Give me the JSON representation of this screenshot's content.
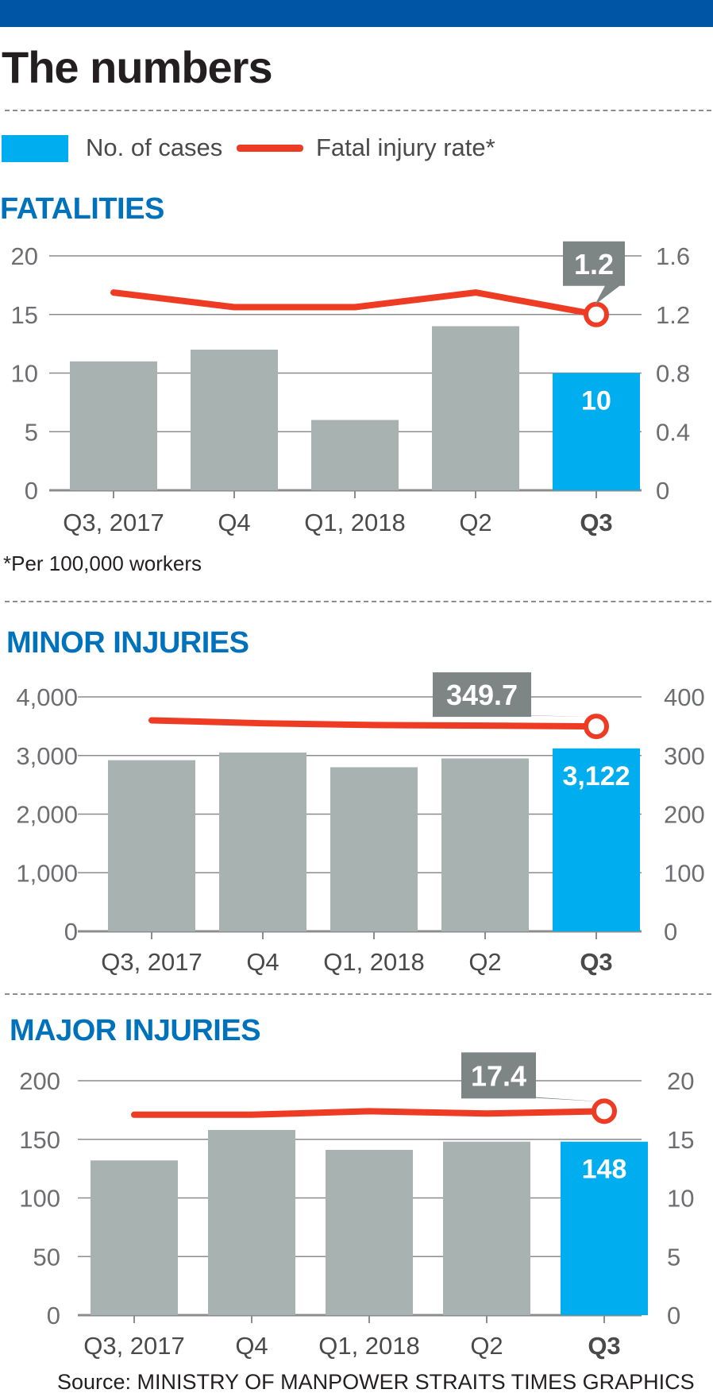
{
  "title": "The numbers",
  "legend": {
    "cases_label": "No. of cases",
    "rate_label": "Fatal injury rate*"
  },
  "colors": {
    "bar": "#a7b2b1",
    "highlight": "#00aeef",
    "line": "#ee3b24",
    "grid": "#8c8c8c",
    "callout": "#7d8685",
    "section": "#0072bc"
  },
  "footnote": "*Per 100,000 workers",
  "source": "Source: MINISTRY OF MANPOWER   STRAITS TIMES GRAPHICS",
  "chart_data": [
    {
      "type": "bar",
      "title": "FATALITIES",
      "categories": [
        "Q3, 2017",
        "Q4",
        "Q1, 2018",
        "Q2",
        "Q3"
      ],
      "series": [
        {
          "name": "No. of cases",
          "axis": "left",
          "values": [
            11,
            12,
            6,
            14,
            10
          ]
        },
        {
          "name": "Fatal injury rate*",
          "axis": "right",
          "type": "line",
          "values": [
            1.35,
            1.25,
            1.25,
            1.35,
            1.2
          ]
        }
      ],
      "ylim": [
        0,
        20
      ],
      "yticks": [
        0,
        5,
        10,
        15,
        20
      ],
      "ytick_labels": [
        "0",
        "5",
        "10",
        "15",
        "20"
      ],
      "y2lim": [
        0,
        1.6
      ],
      "y2ticks": [
        0,
        0.4,
        0.8,
        1.2,
        1.6
      ],
      "y2tick_labels": [
        "0",
        "0.4",
        "0.8",
        "1.2",
        "1.6"
      ],
      "bar_label": "10",
      "callout_label": "1.2"
    },
    {
      "type": "bar",
      "title": "MINOR INJURIES",
      "categories": [
        "Q3, 2017",
        "Q4",
        "Q1, 2018",
        "Q2",
        "Q3"
      ],
      "series": [
        {
          "name": "No. of cases",
          "axis": "left",
          "values": [
            2920,
            3050,
            2800,
            2950,
            3122
          ]
        },
        {
          "name": "Fatal injury rate*",
          "axis": "right",
          "type": "line",
          "values": [
            360,
            355,
            352,
            351,
            349.7
          ]
        }
      ],
      "ylim": [
        0,
        4000
      ],
      "yticks": [
        0,
        1000,
        2000,
        3000,
        4000
      ],
      "ytick_labels": [
        "0",
        "1,000",
        "2,000",
        "3,000",
        "4,000"
      ],
      "y2lim": [
        0,
        400
      ],
      "y2ticks": [
        0,
        100,
        200,
        300,
        400
      ],
      "y2tick_labels": [
        "0",
        "100",
        "200",
        "300",
        "400"
      ],
      "bar_label": "3,122",
      "callout_label": "349.7"
    },
    {
      "type": "bar",
      "title": "MAJOR INJURIES",
      "categories": [
        "Q3, 2017",
        "Q4",
        "Q1, 2018",
        "Q2",
        "Q3"
      ],
      "series": [
        {
          "name": "No. of cases",
          "axis": "left",
          "values": [
            132,
            158,
            141,
            148,
            148
          ]
        },
        {
          "name": "Fatal injury rate*",
          "axis": "right",
          "type": "line",
          "values": [
            17.1,
            17.1,
            17.4,
            17.2,
            17.4
          ]
        }
      ],
      "ylim": [
        0,
        200
      ],
      "yticks": [
        0,
        50,
        100,
        150,
        200
      ],
      "ytick_labels": [
        "0",
        "50",
        "100",
        "150",
        "200"
      ],
      "y2lim": [
        0,
        20
      ],
      "y2ticks": [
        0,
        5,
        10,
        15,
        20
      ],
      "y2tick_labels": [
        "0",
        "5",
        "10",
        "15",
        "20"
      ],
      "bar_label": "148",
      "callout_label": "17.4"
    }
  ]
}
